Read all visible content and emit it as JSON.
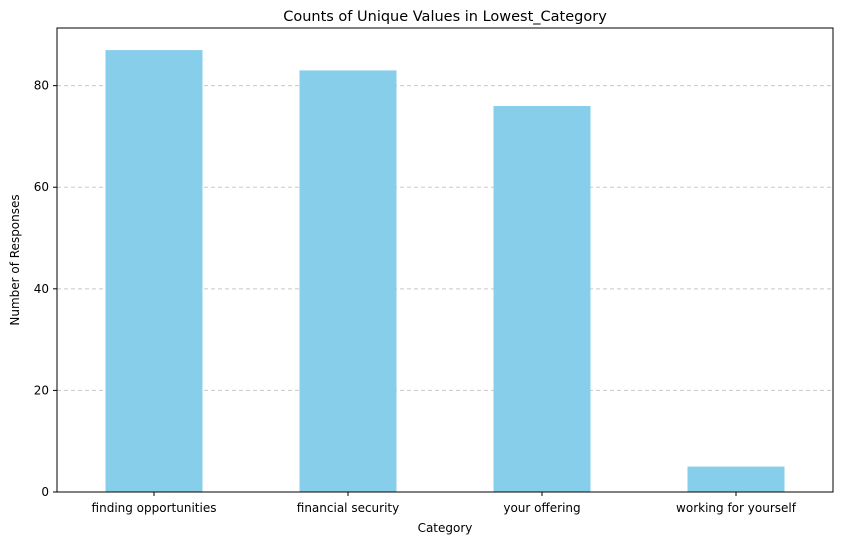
{
  "chart_data": {
    "type": "bar",
    "title": "Counts of Unique Values in Lowest_Category",
    "xlabel": "Category",
    "ylabel": "Number of Responses",
    "categories": [
      "finding opportunities",
      "financial security",
      "your offering",
      "working for yourself"
    ],
    "values": [
      87,
      83,
      76,
      5
    ],
    "ylim": [
      0,
      91.35
    ],
    "yticks": [
      0,
      20,
      40,
      60,
      80
    ],
    "grid": {
      "axis": "y",
      "style": "dashed"
    },
    "colors": {
      "bar": "#87ceeb",
      "grid": "#c8c8c8",
      "axis": "#000000"
    }
  }
}
